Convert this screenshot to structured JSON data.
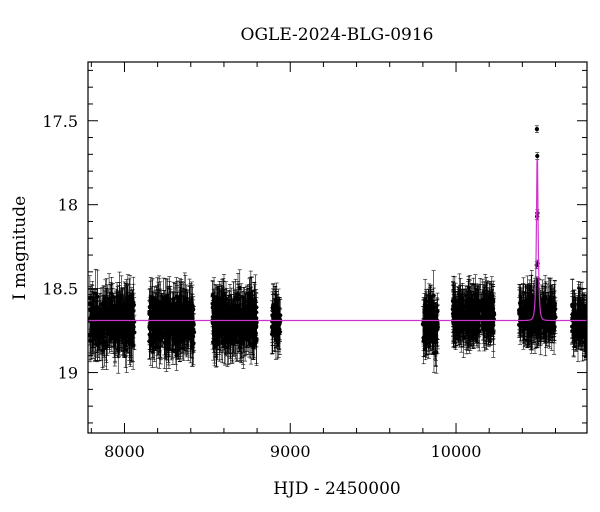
{
  "chart_data": {
    "type": "scatter",
    "title": "OGLE-2024-BLG-0916",
    "xlabel": "HJD - 2450000",
    "ylabel": "I magnitude",
    "xlim": [
      7780,
      10790
    ],
    "ylim": [
      19.36,
      17.15
    ],
    "y_inverted": true,
    "xticks": [
      8000,
      9000,
      10000
    ],
    "xtick_labels": [
      "8000",
      "9000",
      "10000"
    ],
    "yticks": [
      17.5,
      18,
      18.5,
      19
    ],
    "ytick_labels": [
      "17.5",
      "18",
      "18.5",
      "19"
    ],
    "grid": false,
    "baseline_magnitude": 18.69,
    "season_blocks": [
      {
        "start": 7790,
        "end": 8060,
        "center_mag": 18.7,
        "scatter": 0.09
      },
      {
        "start": 8150,
        "end": 8420,
        "center_mag": 18.7,
        "scatter": 0.09
      },
      {
        "start": 8530,
        "end": 8800,
        "center_mag": 18.7,
        "scatter": 0.09
      },
      {
        "start": 8890,
        "end": 8940,
        "center_mag": 18.7,
        "scatter": 0.07
      },
      {
        "start": 9800,
        "end": 9890,
        "center_mag": 18.7,
        "scatter": 0.08
      },
      {
        "start": 9980,
        "end": 10230,
        "center_mag": 18.66,
        "scatter": 0.06
      },
      {
        "start": 10380,
        "end": 10600,
        "center_mag": 18.66,
        "scatter": 0.06
      },
      {
        "start": 10700,
        "end": 10790,
        "center_mag": 18.7,
        "scatter": 0.06
      }
    ],
    "peak_points": [
      {
        "x": 10488,
        "y": 17.55
      },
      {
        "x": 10490,
        "y": 17.71
      },
      {
        "x": 10491,
        "y": 18.05
      },
      {
        "x": 10489,
        "y": 18.07
      },
      {
        "x": 10492,
        "y": 18.35
      },
      {
        "x": 10487,
        "y": 18.36
      },
      {
        "x": 10493,
        "y": 18.47
      },
      {
        "x": 10486,
        "y": 18.45
      }
    ],
    "model": {
      "type": "microlensing-fit",
      "t0": 10490,
      "peak_mag": 17.62,
      "baseline_mag": 18.69,
      "color": "#cc33cc"
    },
    "marker_color": "#000000"
  }
}
